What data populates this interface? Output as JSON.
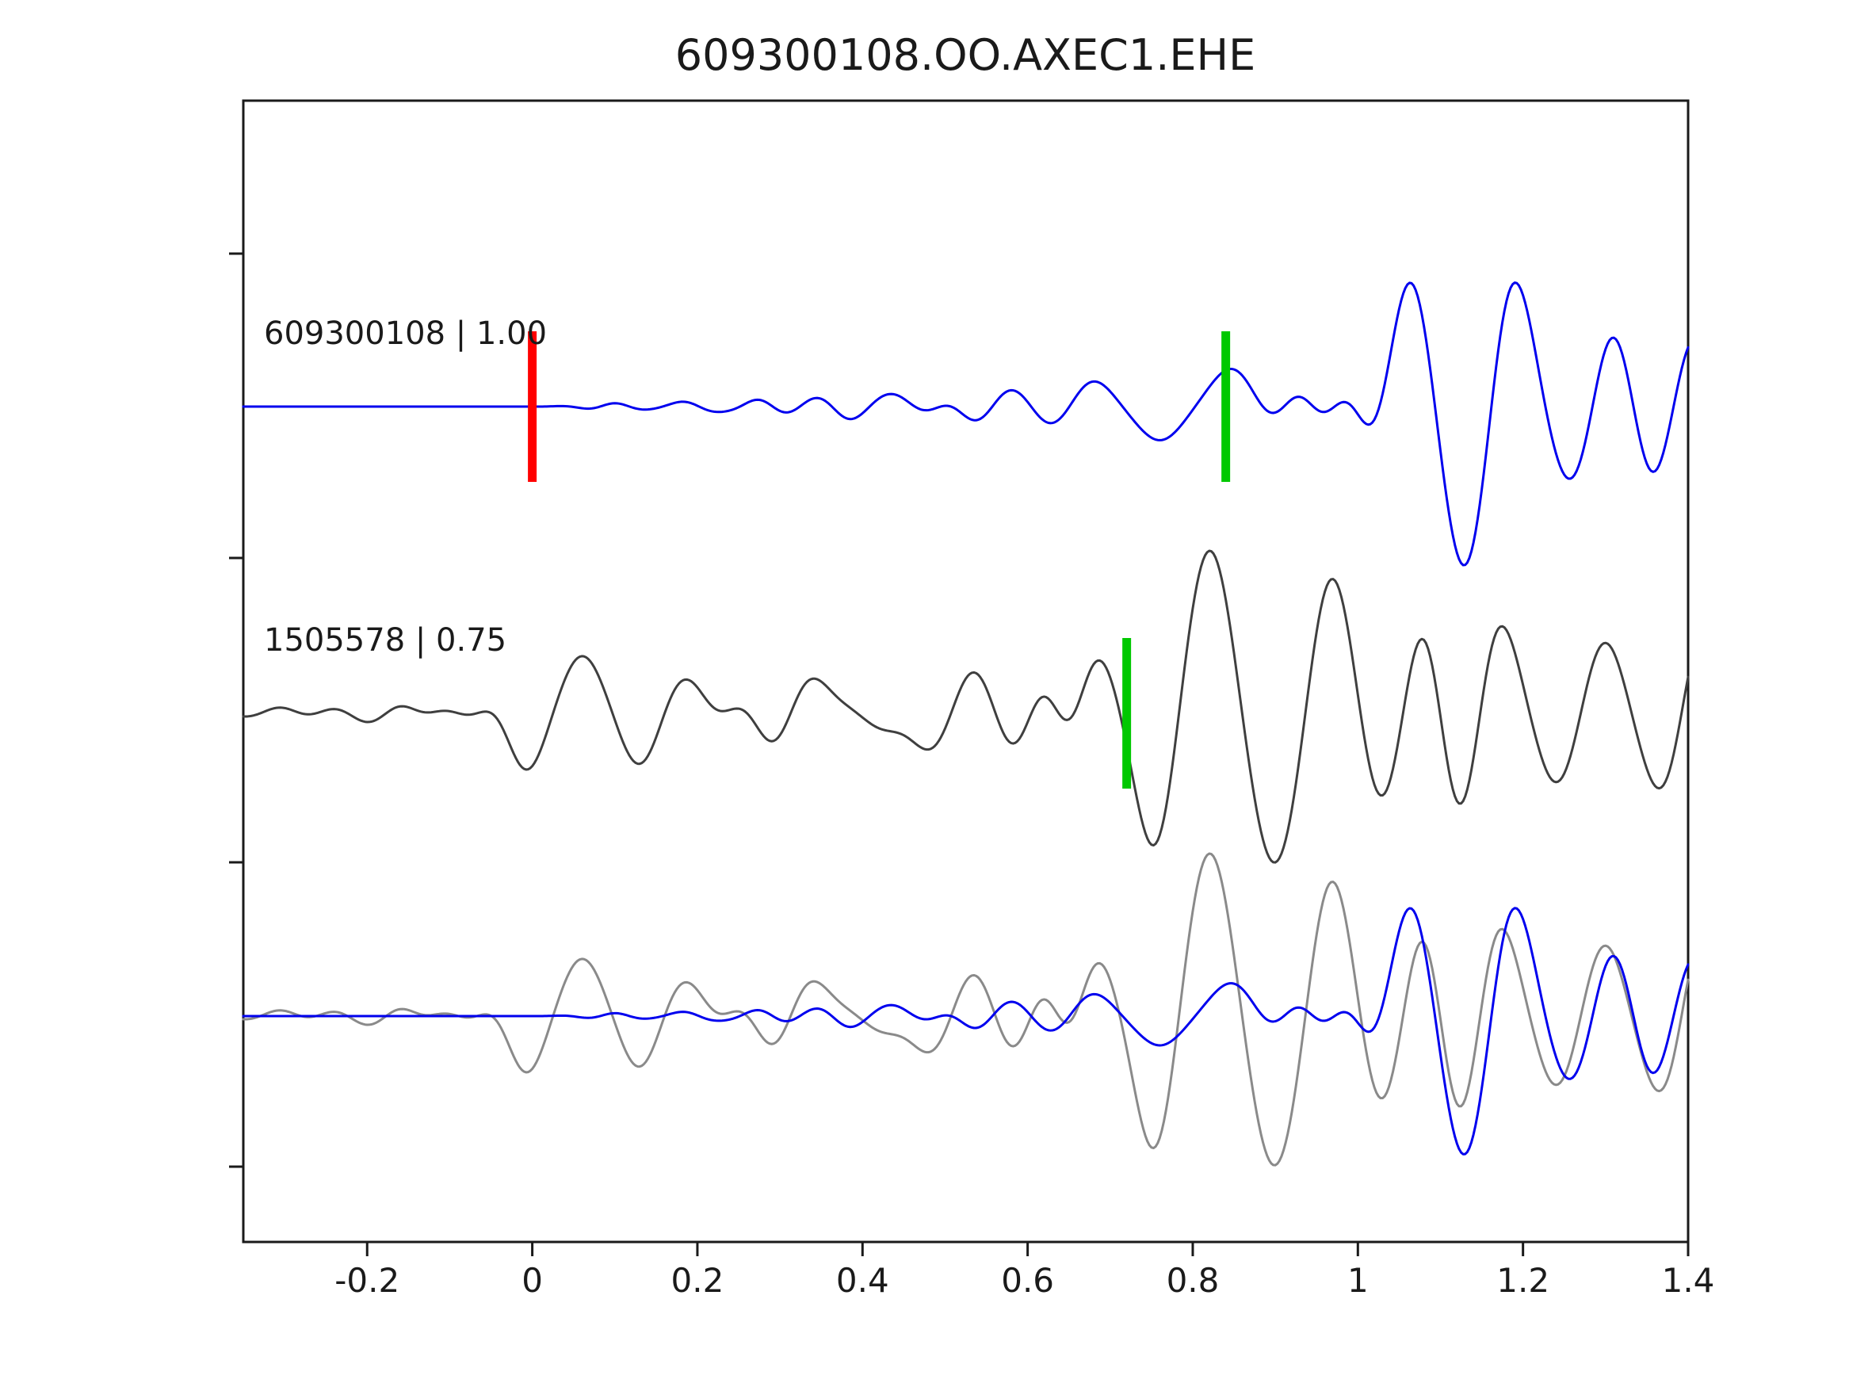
{
  "chart_data": {
    "type": "line",
    "title": "609300108.OO.AXEC1.EHE",
    "xlabel": "",
    "ylabel": "",
    "xlim": [
      -0.35,
      1.4
    ],
    "x_ticks": [
      -0.2,
      0,
      0.2,
      0.4,
      0.6,
      0.8,
      1,
      1.2,
      1.4
    ],
    "x_tick_labels": [
      "-0.2",
      "0",
      "0.2",
      "0.4",
      "0.6",
      "0.8",
      "1",
      "1.2",
      "1.4"
    ],
    "grid": false,
    "legend": "none",
    "colors": {
      "axis": "#1a1a1a",
      "template_trace": "#0000ee",
      "detection_trace": "#3f3f3f",
      "overlay_detection_trace": "#8a8a8a",
      "template_pick_marker": "#ff0000",
      "aligned_pick_marker": "#00c800"
    },
    "panels": [
      {
        "label": "609300108 | 1.00",
        "series": [
          {
            "wave": "template",
            "color": "#0000ee",
            "scale": 1.0
          }
        ],
        "picks": [
          {
            "time": 0.0,
            "color": "#ff0000",
            "name": "template-pick"
          },
          {
            "time": 0.84,
            "color": "#00c800",
            "name": "aligned-pick"
          }
        ]
      },
      {
        "label": "1505578 | 0.75",
        "series": [
          {
            "wave": "detection",
            "color": "#3f3f3f",
            "scale": 1.0
          }
        ],
        "picks": [
          {
            "time": 0.72,
            "color": "#00c800",
            "name": "aligned-pick"
          }
        ]
      },
      {
        "label": "",
        "series": [
          {
            "wave": "detection",
            "color": "#8a8a8a",
            "scale": 1.0
          },
          {
            "wave": "template",
            "color": "#0000ee",
            "scale": 0.85
          }
        ],
        "picks": []
      }
    ],
    "waves": {
      "template": {
        "packets": [
          {
            "c": 0.1,
            "a": 0.03,
            "f": 14,
            "w": 0.05,
            "p": 0
          },
          {
            "c": 0.2,
            "a": 0.05,
            "f": 12,
            "w": 0.05,
            "p": 1.5
          },
          {
            "c": 0.28,
            "a": 0.06,
            "f": 13,
            "w": 0.05,
            "p": 0.5
          },
          {
            "c": 0.37,
            "a": 0.09,
            "f": 11,
            "w": 0.05,
            "p": 2.0
          },
          {
            "c": 0.45,
            "a": 0.11,
            "f": 9,
            "w": 0.06,
            "p": 0.8
          },
          {
            "c": 0.53,
            "a": 0.11,
            "f": 10,
            "w": 0.05,
            "p": 2.6
          },
          {
            "c": 0.6,
            "a": 0.13,
            "f": 9,
            "w": 0.06,
            "p": 1.2
          },
          {
            "c": 0.68,
            "a": 0.17,
            "f": 8,
            "w": 0.055,
            "p": 0.2
          },
          {
            "c": 0.76,
            "a": -0.28,
            "f": 6.5,
            "w": 0.06,
            "p": 0
          },
          {
            "c": 0.85,
            "a": 0.32,
            "f": 6,
            "w": 0.055,
            "p": 0
          },
          {
            "c": 0.93,
            "a": 0.18,
            "f": 9,
            "w": 0.045,
            "p": 0
          },
          {
            "c": 0.99,
            "a": 0.24,
            "f": 9,
            "w": 0.05,
            "p": 0
          },
          {
            "c": 1.06,
            "a": 0.95,
            "f": 7,
            "w": 0.055,
            "p": 0
          },
          {
            "c": 1.13,
            "a": -1.05,
            "f": 6.5,
            "w": 0.055,
            "p": 0
          },
          {
            "c": 1.19,
            "a": 0.85,
            "f": 7,
            "w": 0.055,
            "p": 0
          },
          {
            "c": 1.26,
            "a": -0.35,
            "f": 8,
            "w": 0.05,
            "p": 0
          },
          {
            "c": 1.31,
            "a": 0.45,
            "f": 8,
            "w": 0.05,
            "p": 0
          },
          {
            "c": 1.36,
            "a": -0.3,
            "f": 8,
            "w": 0.05,
            "p": 0
          },
          {
            "c": 1.41,
            "a": 0.55,
            "f": 7,
            "w": 0.06,
            "p": 0
          }
        ]
      },
      "detection": {
        "packets": [
          {
            "c": -0.3,
            "a": 0.06,
            "f": 10,
            "w": 0.06,
            "p": 0.3
          },
          {
            "c": -0.22,
            "a": 0.07,
            "f": 9,
            "w": 0.06,
            "p": 1.8
          },
          {
            "c": -0.15,
            "a": 0.06,
            "f": 11,
            "w": 0.05,
            "p": 0.9
          },
          {
            "c": -0.08,
            "a": 0.08,
            "f": 9,
            "w": 0.06,
            "p": 2.4
          },
          {
            "c": -0.01,
            "a": -0.45,
            "f": 7,
            "w": 0.045,
            "p": 0
          },
          {
            "c": 0.06,
            "a": 0.42,
            "f": 7,
            "w": 0.05,
            "p": 0
          },
          {
            "c": 0.13,
            "a": -0.32,
            "f": 8,
            "w": 0.05,
            "p": 0
          },
          {
            "c": 0.2,
            "a": 0.26,
            "f": 8,
            "w": 0.06,
            "p": 0.5
          },
          {
            "c": 0.27,
            "a": 0.22,
            "f": 9,
            "w": 0.06,
            "p": 1.5
          },
          {
            "c": 0.34,
            "a": 0.26,
            "f": 8,
            "w": 0.06,
            "p": 0.3
          },
          {
            "c": 0.41,
            "a": 0.28,
            "f": 7.5,
            "w": 0.06,
            "p": 2.0
          },
          {
            "c": 0.48,
            "a": -0.3,
            "f": 7,
            "w": 0.06,
            "p": 0
          },
          {
            "c": 0.55,
            "a": 0.28,
            "f": 8,
            "w": 0.06,
            "p": 1.0
          },
          {
            "c": 0.62,
            "a": 0.22,
            "f": 10,
            "w": 0.05,
            "p": 0
          },
          {
            "c": 0.68,
            "a": 0.35,
            "f": 9,
            "w": 0.045,
            "p": 0
          },
          {
            "c": 0.75,
            "a": -0.85,
            "f": 7,
            "w": 0.05,
            "p": 0
          },
          {
            "c": 0.82,
            "a": 1.15,
            "f": 6.5,
            "w": 0.06,
            "p": 0
          },
          {
            "c": 0.9,
            "a": -0.95,
            "f": 6.5,
            "w": 0.06,
            "p": 0
          },
          {
            "c": 0.97,
            "a": 0.85,
            "f": 7,
            "w": 0.055,
            "p": 0
          },
          {
            "c": 1.03,
            "a": -0.4,
            "f": 8,
            "w": 0.05,
            "p": 0
          },
          {
            "c": 1.08,
            "a": 0.4,
            "f": 8,
            "w": 0.045,
            "p": 0
          },
          {
            "c": 1.125,
            "a": -0.6,
            "f": 7.5,
            "w": 0.05,
            "p": 0
          },
          {
            "c": 1.17,
            "a": 0.55,
            "f": 7,
            "w": 0.05,
            "p": 0
          },
          {
            "c": 1.24,
            "a": -0.42,
            "f": 8,
            "w": 0.05,
            "p": 0
          },
          {
            "c": 1.3,
            "a": 0.45,
            "f": 8,
            "w": 0.05,
            "p": 0
          },
          {
            "c": 1.37,
            "a": -0.5,
            "f": 7,
            "w": 0.05,
            "p": 0
          },
          {
            "c": 1.42,
            "a": 0.65,
            "f": 6,
            "w": 0.05,
            "p": 0
          }
        ]
      }
    }
  }
}
